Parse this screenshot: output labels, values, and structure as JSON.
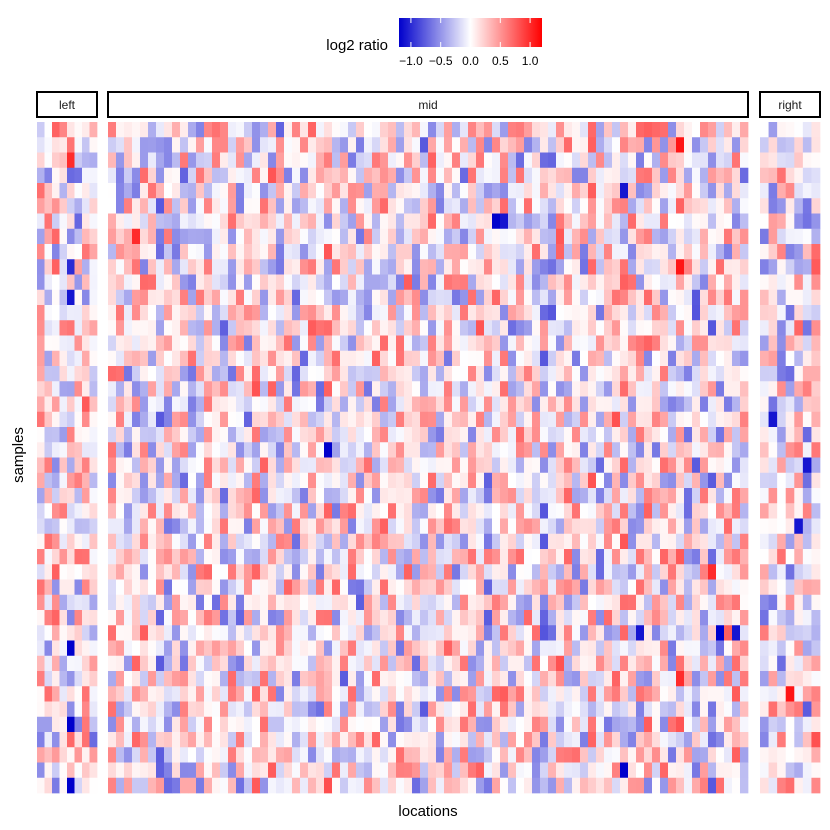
{
  "chart_data": {
    "type": "heatmap",
    "title": "",
    "xlabel": "locations",
    "ylabel": "samples",
    "facets": [
      {
        "name": "left",
        "columns": 8
      },
      {
        "name": "mid",
        "columns": 80
      },
      {
        "name": "right",
        "columns": 7
      }
    ],
    "n_samples": 44,
    "value_range": [
      -1.2,
      1.2
    ],
    "colorscale": {
      "low": "#0000cc",
      "mid": "#ffffff",
      "high": "#ff0000"
    },
    "legend": {
      "title": "log2 ratio",
      "ticks": [
        -1.0,
        -0.5,
        0.0,
        0.5,
        1.0
      ],
      "tick_labels": [
        "−1.0",
        "−0.5",
        "0.0",
        "0.5",
        "1.0"
      ],
      "position": "top"
    },
    "highlight_cells": [
      {
        "facet": "left",
        "column": 4,
        "sample": 2,
        "value": 1.0
      },
      {
        "facet": "left",
        "column": 4,
        "sample": 3,
        "value": -0.7
      },
      {
        "facet": "left",
        "column": 4,
        "sample": 9,
        "value": -1.0
      },
      {
        "facet": "left",
        "column": 4,
        "sample": 11,
        "value": -1.1
      },
      {
        "facet": "left",
        "column": 4,
        "sample": 34,
        "value": -1.2
      },
      {
        "facet": "left",
        "column": 4,
        "sample": 39,
        "value": -1.2
      },
      {
        "facet": "left",
        "column": 4,
        "sample": 43,
        "value": -1.2
      },
      {
        "facet": "mid",
        "column": 3,
        "sample": 7,
        "value": 1.0
      },
      {
        "facet": "mid",
        "column": 27,
        "sample": 21,
        "value": -1.2
      },
      {
        "facet": "mid",
        "column": 48,
        "sample": 6,
        "value": -1.2
      },
      {
        "facet": "mid",
        "column": 49,
        "sample": 6,
        "value": -1.1
      },
      {
        "facet": "mid",
        "column": 64,
        "sample": 4,
        "value": -1.1
      },
      {
        "facet": "mid",
        "column": 64,
        "sample": 42,
        "value": -1.2
      },
      {
        "facet": "mid",
        "column": 66,
        "sample": 33,
        "value": -1.1
      },
      {
        "facet": "mid",
        "column": 71,
        "sample": 1,
        "value": 1.1
      },
      {
        "facet": "mid",
        "column": 71,
        "sample": 9,
        "value": 1.1
      },
      {
        "facet": "mid",
        "column": 71,
        "sample": 36,
        "value": 1.0
      },
      {
        "facet": "mid",
        "column": 75,
        "sample": 29,
        "value": 1.0
      },
      {
        "facet": "mid",
        "column": 76,
        "sample": 33,
        "value": -1.2
      },
      {
        "facet": "mid",
        "column": 78,
        "sample": 33,
        "value": -1.1
      },
      {
        "facet": "right",
        "column": 1,
        "sample": 19,
        "value": -1.1
      },
      {
        "facet": "right",
        "column": 3,
        "sample": 37,
        "value": 1.1
      },
      {
        "facet": "right",
        "column": 4,
        "sample": 26,
        "value": -1.1
      },
      {
        "facet": "right",
        "column": 5,
        "sample": 22,
        "value": -1.1
      }
    ]
  }
}
